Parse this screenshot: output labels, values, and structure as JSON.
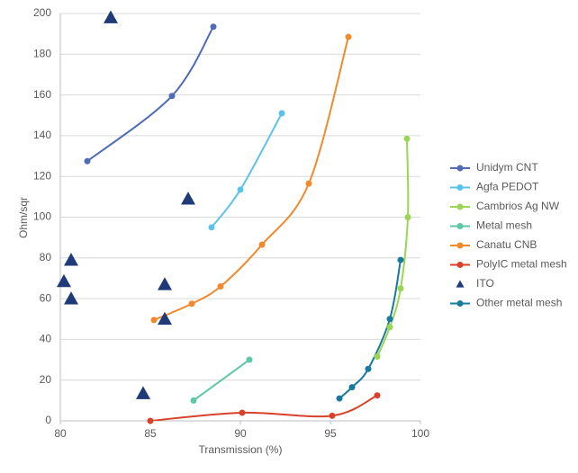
{
  "chart_data": {
    "type": "scatter",
    "x_label": "Transmission (%)",
    "y_label": "Ohm/sqr",
    "xlim": [
      80,
      100
    ],
    "xticks": [
      80,
      85,
      90,
      95,
      100
    ],
    "ylim": [
      0,
      200
    ],
    "yticks": [
      0,
      20,
      40,
      60,
      80,
      100,
      120,
      140,
      160,
      180,
      200
    ],
    "grid": true,
    "legend": "right",
    "series": [
      {
        "name": "Unidym CNT",
        "color": "#4f6bb8",
        "marker": "circle",
        "line": true,
        "x": [
          81.5,
          86.2,
          88.5
        ],
        "values": [
          127.5,
          159.5,
          193.5
        ]
      },
      {
        "name": "Agfa PEDOT",
        "color": "#5bc3e8",
        "marker": "circle",
        "line": true,
        "x": [
          88.4,
          90,
          92.3
        ],
        "values": [
          95,
          113.5,
          151
        ]
      },
      {
        "name": "Cambrios Ag NW",
        "color": "#9ad653",
        "marker": "circle",
        "line": true,
        "x": [
          97.6,
          98.3,
          98.9,
          99.3,
          99.25
        ],
        "values": [
          31.5,
          46,
          65,
          100,
          138.5
        ]
      },
      {
        "name": "Metal mesh",
        "color": "#5ec7a6",
        "marker": "circle",
        "line": true,
        "x": [
          87.4,
          90.5
        ],
        "values": [
          10,
          30
        ]
      },
      {
        "name": "Canatu CNB",
        "color": "#f08a2c",
        "marker": "circle",
        "line": true,
        "x": [
          85.2,
          87.3,
          88.9,
          91.2,
          93.8,
          96
        ],
        "values": [
          49.5,
          57.5,
          66,
          86.5,
          116.5,
          188.5
        ]
      },
      {
        "name": "PolyIC metal mesh",
        "color": "#d9412b",
        "marker": "circle",
        "line": true,
        "x": [
          85,
          90.1,
          95.1,
          97.6
        ],
        "values": [
          0,
          4,
          2.5,
          12.5
        ]
      },
      {
        "name": "ITO",
        "color": "#1f3a78",
        "marker": "triangle",
        "line": false,
        "x": [
          82.8,
          87.1,
          80.6,
          80.2,
          80.6,
          85.8,
          85.8,
          84.6
        ],
        "values": [
          198,
          109,
          79,
          68.5,
          60,
          67,
          50,
          13.5
        ]
      },
      {
        "name": "Other metal mesh",
        "color": "#1a7a9e",
        "marker": "circle",
        "line": true,
        "x": [
          95.5,
          96.2,
          97.1,
          98.3,
          98.9
        ],
        "values": [
          11,
          16.5,
          25.5,
          50,
          79
        ]
      }
    ]
  }
}
